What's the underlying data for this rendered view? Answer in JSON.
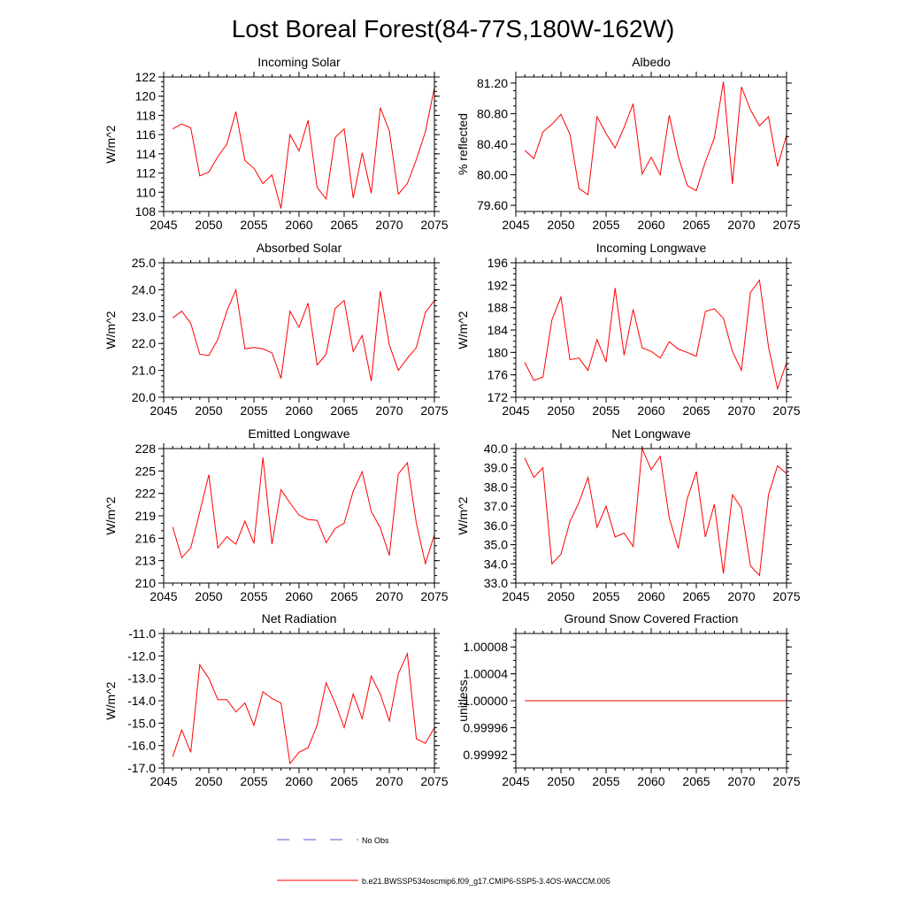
{
  "figure_title": "Lost Boreal Forest(84-77S,180W-162W)",
  "legend": {
    "no_obs_label": "No Obs",
    "no_obs_color": "#5a5acd",
    "model_label": "b.e21.BWSSP534oscmip6.f09_g17.CMIP6-SSP5-3.4OS-WACCM.005",
    "model_color": "#ff0000"
  },
  "chart_data": [
    {
      "type": "line",
      "title": "Incoming Solar",
      "ylabel": "W/m^2",
      "xlim": [
        2045,
        2075
      ],
      "ylim": [
        108,
        122
      ],
      "x_ticks": [
        2045,
        2050,
        2055,
        2060,
        2065,
        2070,
        2075
      ],
      "y_ticks": [
        "108",
        "110",
        "112",
        "114",
        "116",
        "118",
        "120",
        "122"
      ],
      "y_tick_values": [
        108,
        110,
        112,
        114,
        116,
        118,
        120,
        122
      ],
      "y_minor_step": 0.5,
      "series": [
        {
          "name": "b.e21.BWSSP534oscmip6.f09_g17.CMIP6-SSP5-3.4OS-WACCM.005",
          "x": [
            2046,
            2047,
            2048,
            2049,
            2050,
            2051,
            2052,
            2053,
            2054,
            2055,
            2056,
            2057,
            2058,
            2059,
            2060,
            2061,
            2062,
            2063,
            2064,
            2065,
            2066,
            2067,
            2068,
            2069,
            2070,
            2071,
            2072,
            2073,
            2074,
            2075
          ],
          "values": [
            116.6,
            117.1,
            116.7,
            111.7,
            112.1,
            113.7,
            115.0,
            118.4,
            113.3,
            112.5,
            110.9,
            111.8,
            108.3,
            116.0,
            114.3,
            117.5,
            110.5,
            109.3,
            115.7,
            116.6,
            109.4,
            114.1,
            109.9,
            118.8,
            116.4,
            109.8,
            110.9,
            113.4,
            116.3,
            120.9
          ]
        }
      ]
    },
    {
      "type": "line",
      "title": "Albedo",
      "ylabel": "% reflected",
      "xlim": [
        2045,
        2075
      ],
      "ylim": [
        79.52,
        81.28
      ],
      "x_ticks": [
        2045,
        2050,
        2055,
        2060,
        2065,
        2070,
        2075
      ],
      "y_ticks": [
        "79.60",
        "80.00",
        "80.40",
        "80.80",
        "81.20"
      ],
      "y_tick_values": [
        79.6,
        80.0,
        80.4,
        80.8,
        81.2
      ],
      "y_minor_step": 0.1,
      "series": [
        {
          "name": "b.e21.BWSSP534oscmip6.f09_g17.CMIP6-SSP5-3.4OS-WACCM.005",
          "x": [
            2046,
            2047,
            2048,
            2049,
            2050,
            2051,
            2052,
            2053,
            2054,
            2055,
            2056,
            2057,
            2058,
            2059,
            2060,
            2061,
            2062,
            2063,
            2064,
            2065,
            2066,
            2067,
            2068,
            2069,
            2070,
            2071,
            2072,
            2073,
            2074,
            2075
          ],
          "values": [
            80.32,
            80.21,
            80.56,
            80.66,
            80.79,
            80.53,
            79.82,
            79.74,
            80.76,
            80.54,
            80.35,
            80.62,
            80.93,
            80.01,
            80.23,
            80.0,
            80.78,
            80.24,
            79.86,
            79.79,
            80.17,
            80.48,
            81.22,
            79.88,
            81.15,
            80.85,
            80.64,
            80.76,
            80.11,
            80.52
          ]
        }
      ]
    },
    {
      "type": "line",
      "title": "Absorbed Solar",
      "ylabel": "W/m^2",
      "xlim": [
        2045,
        2075
      ],
      "ylim": [
        20.0,
        25.0
      ],
      "x_ticks": [
        2045,
        2050,
        2055,
        2060,
        2065,
        2070,
        2075
      ],
      "y_ticks": [
        "20.0",
        "21.0",
        "22.0",
        "23.0",
        "24.0",
        "25.0"
      ],
      "y_tick_values": [
        20,
        21,
        22,
        23,
        24,
        25
      ],
      "y_minor_step": 0.2,
      "series": [
        {
          "name": "b.e21.BWSSP534oscmip6.f09_g17.CMIP6-SSP5-3.4OS-WACCM.005",
          "x": [
            2046,
            2047,
            2048,
            2049,
            2050,
            2051,
            2052,
            2053,
            2054,
            2055,
            2056,
            2057,
            2058,
            2059,
            2060,
            2061,
            2062,
            2063,
            2064,
            2065,
            2066,
            2067,
            2068,
            2069,
            2070,
            2071,
            2072,
            2073,
            2074,
            2075
          ],
          "values": [
            22.95,
            23.2,
            22.75,
            21.6,
            21.55,
            22.15,
            23.2,
            24.0,
            21.8,
            21.85,
            21.8,
            21.65,
            20.7,
            23.2,
            22.6,
            23.5,
            21.2,
            21.6,
            23.3,
            23.6,
            21.7,
            22.3,
            20.6,
            23.95,
            21.95,
            21.0,
            21.45,
            21.85,
            23.15,
            23.6
          ]
        }
      ]
    },
    {
      "type": "line",
      "title": "Incoming Longwave",
      "ylabel": "W/m^2",
      "xlim": [
        2045,
        2075
      ],
      "ylim": [
        172,
        196
      ],
      "x_ticks": [
        2045,
        2050,
        2055,
        2060,
        2065,
        2070,
        2075
      ],
      "y_ticks": [
        "172",
        "176",
        "180",
        "184",
        "188",
        "192",
        "196"
      ],
      "y_tick_values": [
        172,
        176,
        180,
        184,
        188,
        192,
        196
      ],
      "y_minor_step": 1,
      "series": [
        {
          "name": "b.e21.BWSSP534oscmip6.f09_g17.CMIP6-SSP5-3.4OS-WACCM.005",
          "x": [
            2046,
            2047,
            2048,
            2049,
            2050,
            2051,
            2052,
            2053,
            2054,
            2055,
            2056,
            2057,
            2058,
            2059,
            2060,
            2061,
            2062,
            2063,
            2064,
            2065,
            2066,
            2067,
            2068,
            2069,
            2070,
            2071,
            2072,
            2073,
            2074,
            2075
          ],
          "values": [
            178.2,
            175.0,
            175.6,
            185.8,
            189.9,
            178.7,
            179.0,
            176.8,
            182.3,
            178.3,
            191.5,
            179.5,
            187.7,
            180.8,
            180.2,
            179.0,
            181.9,
            180.6,
            180.0,
            179.3,
            187.3,
            187.8,
            186.1,
            180.2,
            176.8,
            190.7,
            192.9,
            181.0,
            173.5,
            178.2
          ]
        }
      ]
    },
    {
      "type": "line",
      "title": "Emitted Longwave",
      "ylabel": "W/m^2",
      "xlim": [
        2045,
        2075
      ],
      "ylim": [
        210,
        228
      ],
      "x_ticks": [
        2045,
        2050,
        2055,
        2060,
        2065,
        2070,
        2075
      ],
      "y_ticks": [
        "210",
        "213",
        "216",
        "219",
        "222",
        "225",
        "228"
      ],
      "y_tick_values": [
        210,
        213,
        216,
        219,
        222,
        225,
        228
      ],
      "y_minor_step": 1,
      "series": [
        {
          "name": "b.e21.BWSSP534oscmip6.f09_g17.CMIP6-SSP5-3.4OS-WACCM.005",
          "x": [
            2046,
            2047,
            2048,
            2049,
            2050,
            2051,
            2052,
            2053,
            2054,
            2055,
            2056,
            2057,
            2058,
            2059,
            2060,
            2061,
            2062,
            2063,
            2064,
            2065,
            2066,
            2067,
            2068,
            2069,
            2070,
            2071,
            2072,
            2073,
            2074,
            2075
          ],
          "values": [
            217.5,
            213.4,
            214.7,
            219.5,
            224.5,
            214.7,
            216.2,
            215.2,
            218.3,
            215.3,
            226.8,
            215.2,
            222.5,
            220.7,
            219.1,
            218.5,
            218.4,
            215.4,
            217.3,
            218.0,
            222.3,
            224.9,
            219.6,
            217.4,
            213.7,
            224.6,
            226.1,
            218.0,
            212.6,
            216.5
          ]
        }
      ]
    },
    {
      "type": "line",
      "title": "Net Longwave",
      "ylabel": "W/m^2",
      "xlim": [
        2045,
        2075
      ],
      "ylim": [
        33.0,
        40.0
      ],
      "x_ticks": [
        2045,
        2050,
        2055,
        2060,
        2065,
        2070,
        2075
      ],
      "y_ticks": [
        "33.0",
        "34.0",
        "35.0",
        "36.0",
        "37.0",
        "38.0",
        "39.0",
        "40.0"
      ],
      "y_tick_values": [
        33,
        34,
        35,
        36,
        37,
        38,
        39,
        40
      ],
      "y_minor_step": 0.2,
      "series": [
        {
          "name": "b.e21.BWSSP534oscmip6.f09_g17.CMIP6-SSP5-3.4OS-WACCM.005",
          "x": [
            2046,
            2047,
            2048,
            2049,
            2050,
            2051,
            2052,
            2053,
            2054,
            2055,
            2056,
            2057,
            2058,
            2059,
            2060,
            2061,
            2062,
            2063,
            2064,
            2065,
            2066,
            2067,
            2068,
            2069,
            2070,
            2071,
            2072,
            2073,
            2074,
            2075
          ],
          "values": [
            39.5,
            38.5,
            39.0,
            34.0,
            34.5,
            36.2,
            37.2,
            38.5,
            35.9,
            37.0,
            35.4,
            35.6,
            34.9,
            40.0,
            38.9,
            39.6,
            36.4,
            34.8,
            37.4,
            38.8,
            35.4,
            37.1,
            33.5,
            37.6,
            36.9,
            33.9,
            33.4,
            37.6,
            39.1,
            38.7
          ]
        }
      ]
    },
    {
      "type": "line",
      "title": "Net Radiation",
      "ylabel": "W/m^2",
      "xlim": [
        2045,
        2075
      ],
      "ylim": [
        -17.0,
        -11.0
      ],
      "x_ticks": [
        2045,
        2050,
        2055,
        2060,
        2065,
        2070,
        2075
      ],
      "y_ticks": [
        "-17.0",
        "-16.0",
        "-15.0",
        "-14.0",
        "-13.0",
        "-12.0",
        "-11.0"
      ],
      "y_tick_values": [
        -17,
        -16,
        -15,
        -14,
        -13,
        -12,
        -11
      ],
      "y_minor_step": 0.2,
      "series": [
        {
          "name": "b.e21.BWSSP534oscmip6.f09_g17.CMIP6-SSP5-3.4OS-WACCM.005",
          "x": [
            2046,
            2047,
            2048,
            2049,
            2050,
            2051,
            2052,
            2053,
            2054,
            2055,
            2056,
            2057,
            2058,
            2059,
            2060,
            2061,
            2062,
            2063,
            2064,
            2065,
            2066,
            2067,
            2068,
            2069,
            2070,
            2071,
            2072,
            2073,
            2074,
            2075
          ],
          "values": [
            -16.5,
            -15.3,
            -16.3,
            -12.4,
            -13.0,
            -13.95,
            -13.95,
            -14.5,
            -14.1,
            -15.1,
            -13.6,
            -13.9,
            -14.1,
            -16.8,
            -16.3,
            -16.1,
            -15.1,
            -13.2,
            -14.1,
            -15.2,
            -13.7,
            -14.8,
            -12.9,
            -13.7,
            -14.9,
            -12.8,
            -11.9,
            -15.7,
            -15.9,
            -15.2
          ]
        }
      ]
    },
    {
      "type": "line",
      "title": "Ground Snow Covered Fraction",
      "ylabel": "unitless",
      "xlim": [
        2045,
        2075
      ],
      "ylim": [
        0.9999,
        1.0001
      ],
      "x_ticks": [
        2045,
        2050,
        2055,
        2060,
        2065,
        2070,
        2075
      ],
      "y_ticks": [
        "0.99992",
        "0.99996",
        "1.00000",
        "1.00004",
        "1.00008"
      ],
      "y_tick_values": [
        0.99992,
        0.99996,
        1.0,
        1.00004,
        1.00008
      ],
      "y_minor_step": 1e-05,
      "series": [
        {
          "name": "b.e21.BWSSP534oscmip6.f09_g17.CMIP6-SSP5-3.4OS-WACCM.005",
          "x": [
            2046,
            2047,
            2048,
            2049,
            2050,
            2051,
            2052,
            2053,
            2054,
            2055,
            2056,
            2057,
            2058,
            2059,
            2060,
            2061,
            2062,
            2063,
            2064,
            2065,
            2066,
            2067,
            2068,
            2069,
            2070,
            2071,
            2072,
            2073,
            2074,
            2075
          ],
          "values": [
            1,
            1,
            1,
            1,
            1,
            1,
            1,
            1,
            1,
            1,
            1,
            1,
            1,
            1,
            1,
            1,
            1,
            1,
            1,
            1,
            1,
            1,
            1,
            1,
            1,
            1,
            1,
            1,
            1,
            1
          ]
        }
      ]
    }
  ]
}
